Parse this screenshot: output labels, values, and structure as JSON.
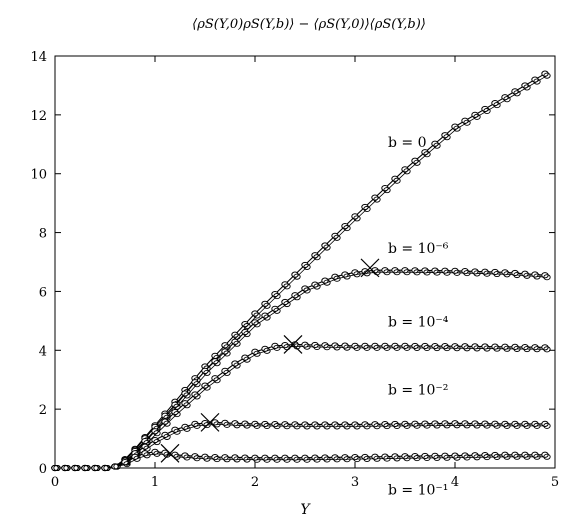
{
  "chart_data": {
    "type": "line",
    "title": "⟨ρS(Y,0)ρS(Y,b)⟩ − ⟨ρS(Y,0)⟩⟨ρS(Y,b)⟩",
    "xlabel": "Y",
    "ylabel": "",
    "xlim": [
      0,
      5
    ],
    "ylim": [
      0,
      14
    ],
    "xticks": [
      "0",
      "1",
      "2",
      "3",
      "4",
      "5"
    ],
    "yticks": [
      "0",
      "2",
      "4",
      "6",
      "8",
      "10",
      "12",
      "14"
    ],
    "grid": false,
    "legend": "none",
    "annotations": [
      {
        "text": "b = 0",
        "x": 3.2,
        "y": 10.9
      },
      {
        "text": "b = 10⁻⁶",
        "x": 3.2,
        "y": 7.3
      },
      {
        "text": "b = 10⁻⁴",
        "x": 3.2,
        "y": 4.8
      },
      {
        "text": "b = 10⁻²",
        "x": 3.2,
        "y": 2.5
      },
      {
        "text": "b = 10⁻¹",
        "x": 3.2,
        "y": -0.9
      }
    ],
    "crossovers": [
      {
        "x": 3.15,
        "y": 6.8
      },
      {
        "x": 2.38,
        "y": 4.2
      },
      {
        "x": 1.55,
        "y": 1.55
      },
      {
        "x": 1.15,
        "y": 0.5
      }
    ],
    "series": [
      {
        "x": [
          0,
          0.5,
          0.6,
          0.7,
          0.8,
          1.0,
          1.2,
          1.5,
          2.0,
          2.5,
          3.0,
          3.5,
          4.0,
          4.5,
          4.9
        ],
        "values": [
          0,
          0,
          0.05,
          0.3,
          0.65,
          1.45,
          2.25,
          3.45,
          5.25,
          6.9,
          8.55,
          10.15,
          11.6,
          12.6,
          13.4
        ]
      },
      {
        "x": [
          0,
          0.5,
          0.6,
          0.7,
          0.8,
          1.0,
          1.2,
          1.5,
          2.0,
          2.5,
          2.8,
          3.0,
          3.2,
          3.5,
          4.0,
          4.5,
          4.9
        ],
        "values": [
          0,
          0,
          0.05,
          0.3,
          0.62,
          1.4,
          2.15,
          3.3,
          4.95,
          6.1,
          6.5,
          6.65,
          6.72,
          6.72,
          6.7,
          6.65,
          6.55
        ]
      },
      {
        "x": [
          0,
          0.5,
          0.6,
          0.7,
          0.8,
          1.0,
          1.2,
          1.5,
          1.8,
          2.0,
          2.2,
          2.4,
          2.6,
          3.0,
          3.5,
          4.0,
          4.5,
          4.9
        ],
        "values": [
          0,
          0,
          0.05,
          0.28,
          0.58,
          1.25,
          1.9,
          2.8,
          3.55,
          3.95,
          4.15,
          4.2,
          4.18,
          4.15,
          4.15,
          4.14,
          4.12,
          4.1
        ]
      },
      {
        "x": [
          0,
          0.5,
          0.6,
          0.7,
          0.8,
          1.0,
          1.2,
          1.4,
          1.6,
          1.8,
          2.0,
          2.5,
          3.0,
          3.5,
          4.0,
          4.5,
          4.9
        ],
        "values": [
          0,
          0,
          0.05,
          0.25,
          0.5,
          0.95,
          1.3,
          1.5,
          1.55,
          1.52,
          1.5,
          1.48,
          1.48,
          1.5,
          1.52,
          1.5,
          1.5
        ]
      },
      {
        "x": [
          0,
          0.5,
          0.6,
          0.7,
          0.8,
          0.9,
          1.0,
          1.1,
          1.2,
          1.4,
          1.6,
          2.0,
          2.5,
          3.0,
          3.5,
          4.0,
          4.5,
          4.9
        ],
        "values": [
          0,
          0,
          0.05,
          0.2,
          0.38,
          0.5,
          0.55,
          0.52,
          0.45,
          0.4,
          0.37,
          0.35,
          0.35,
          0.37,
          0.4,
          0.42,
          0.45,
          0.45
        ]
      }
    ]
  }
}
